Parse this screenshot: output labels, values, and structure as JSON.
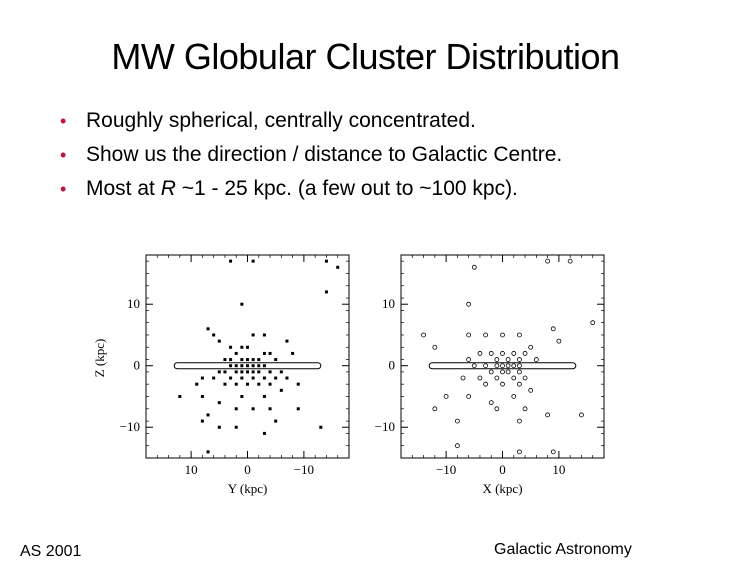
{
  "slide": {
    "title": "MW Globular Cluster Distribution",
    "bullets": [
      {
        "prefix": "Roughly spherical, centrally concentrated.",
        "italic": "",
        "suffix": ""
      },
      {
        "prefix": "Show us the direction / distance to Galactic Centre.",
        "italic": "",
        "suffix": ""
      },
      {
        "prefix": "Most at ",
        "italic": "R",
        "suffix": " ~1 - 25 kpc.   (a few out to ~100 kpc)."
      }
    ],
    "footer_left": "AS 2001",
    "footer_right": "Galactic Astronomy",
    "bullet_color": "#c0143c"
  },
  "chart_data": [
    {
      "type": "scatter",
      "marker": "filled",
      "xlabel": "Y (kpc)",
      "ylabel": "Z (kpc)",
      "xlim": [
        18,
        -18
      ],
      "ylim": [
        -15,
        18
      ],
      "xticks": [
        10,
        0,
        -10
      ],
      "xtick_labels": [
        "10",
        "0",
        "−10"
      ],
      "yticks": [
        10,
        0,
        -10
      ],
      "ytick_labels": [
        "10",
        "0",
        "−10"
      ],
      "disk": {
        "x_range": [
          13,
          -13
        ],
        "y": 0
      },
      "points": [
        [
          3,
          17
        ],
        [
          -1,
          17
        ],
        [
          -14,
          17
        ],
        [
          -16,
          16
        ],
        [
          -14,
          12
        ],
        [
          1,
          10
        ],
        [
          7,
          6
        ],
        [
          6,
          5
        ],
        [
          -1,
          5
        ],
        [
          -3,
          5
        ],
        [
          -7,
          4
        ],
        [
          5,
          4
        ],
        [
          3,
          3
        ],
        [
          1,
          3
        ],
        [
          0,
          3
        ],
        [
          -3,
          2
        ],
        [
          -4,
          2
        ],
        [
          -8,
          2
        ],
        [
          2,
          2
        ],
        [
          1,
          1
        ],
        [
          0,
          1
        ],
        [
          -1,
          1
        ],
        [
          -2,
          1
        ],
        [
          3,
          1
        ],
        [
          4,
          1
        ],
        [
          -5,
          1
        ],
        [
          0,
          0
        ],
        [
          1,
          0
        ],
        [
          -1,
          0
        ],
        [
          -2,
          0
        ],
        [
          2,
          0
        ],
        [
          3,
          0
        ],
        [
          -3,
          0
        ],
        [
          0,
          -1
        ],
        [
          1,
          -1
        ],
        [
          -1,
          -1
        ],
        [
          2,
          -1
        ],
        [
          -2,
          -1
        ],
        [
          -4,
          -1
        ],
        [
          4,
          -1
        ],
        [
          5,
          -1
        ],
        [
          -6,
          -1
        ],
        [
          1,
          -2
        ],
        [
          -1,
          -2
        ],
        [
          3,
          -2
        ],
        [
          -3,
          -2
        ],
        [
          -5,
          -2
        ],
        [
          6,
          -2
        ],
        [
          -7,
          -2
        ],
        [
          8,
          -2
        ],
        [
          0,
          -3
        ],
        [
          2,
          -3
        ],
        [
          -2,
          -3
        ],
        [
          4,
          -3
        ],
        [
          -4,
          -3
        ],
        [
          9,
          -3
        ],
        [
          -9,
          -3
        ],
        [
          12,
          -5
        ],
        [
          8,
          -5
        ],
        [
          1,
          -5
        ],
        [
          -3,
          -5
        ],
        [
          -6,
          -4
        ],
        [
          5,
          -6
        ],
        [
          -1,
          -7
        ],
        [
          7,
          -8
        ],
        [
          2,
          -7
        ],
        [
          -4,
          -7
        ],
        [
          -9,
          -7
        ],
        [
          8,
          -9
        ],
        [
          -5,
          -9
        ],
        [
          2,
          -10
        ],
        [
          5,
          -10
        ],
        [
          -3,
          -11
        ],
        [
          -13,
          -10
        ],
        [
          7,
          -14
        ]
      ]
    },
    {
      "type": "scatter",
      "marker": "open",
      "xlabel": "X (kpc)",
      "ylabel": "",
      "xlim": [
        -18,
        18
      ],
      "ylim": [
        -15,
        18
      ],
      "xticks": [
        -10,
        0,
        10
      ],
      "xtick_labels": [
        "−10",
        "0",
        "10"
      ],
      "yticks": [
        10,
        0,
        -10
      ],
      "ytick_labels": [
        "10",
        "0",
        "−10"
      ],
      "disk": {
        "x_range": [
          -13,
          13
        ],
        "y": 0
      },
      "points": [
        [
          -5,
          16
        ],
        [
          8,
          17
        ],
        [
          12,
          17
        ],
        [
          -6,
          10
        ],
        [
          -14,
          5
        ],
        [
          -12,
          3
        ],
        [
          -6,
          5
        ],
        [
          -3,
          5
        ],
        [
          3,
          5
        ],
        [
          0,
          5
        ],
        [
          9,
          6
        ],
        [
          16,
          7
        ],
        [
          10,
          4
        ],
        [
          5,
          3
        ],
        [
          -4,
          2
        ],
        [
          -2,
          2
        ],
        [
          0,
          2
        ],
        [
          2,
          2
        ],
        [
          4,
          2
        ],
        [
          -6,
          1
        ],
        [
          -1,
          1
        ],
        [
          1,
          1
        ],
        [
          3,
          1
        ],
        [
          6,
          1
        ],
        [
          -3,
          0
        ],
        [
          -1,
          0
        ],
        [
          0,
          0
        ],
        [
          1,
          0
        ],
        [
          2,
          0
        ],
        [
          3,
          0
        ],
        [
          -5,
          0
        ],
        [
          -2,
          -1
        ],
        [
          0,
          -1
        ],
        [
          1,
          -1
        ],
        [
          3,
          -1
        ],
        [
          -1,
          -2
        ],
        [
          2,
          -2
        ],
        [
          4,
          -2
        ],
        [
          -4,
          -2
        ],
        [
          -7,
          -2
        ],
        [
          0,
          -3
        ],
        [
          -3,
          -3
        ],
        [
          3,
          -3
        ],
        [
          5,
          -4
        ],
        [
          -10,
          -5
        ],
        [
          -6,
          -5
        ],
        [
          2,
          -5
        ],
        [
          -2,
          -6
        ],
        [
          -1,
          -7
        ],
        [
          4,
          -7
        ],
        [
          -12,
          -7
        ],
        [
          8,
          -8
        ],
        [
          14,
          -8
        ],
        [
          -8,
          -9
        ],
        [
          3,
          -9
        ],
        [
          -8,
          -13
        ],
        [
          3,
          -14
        ],
        [
          9,
          -14
        ]
      ]
    }
  ]
}
